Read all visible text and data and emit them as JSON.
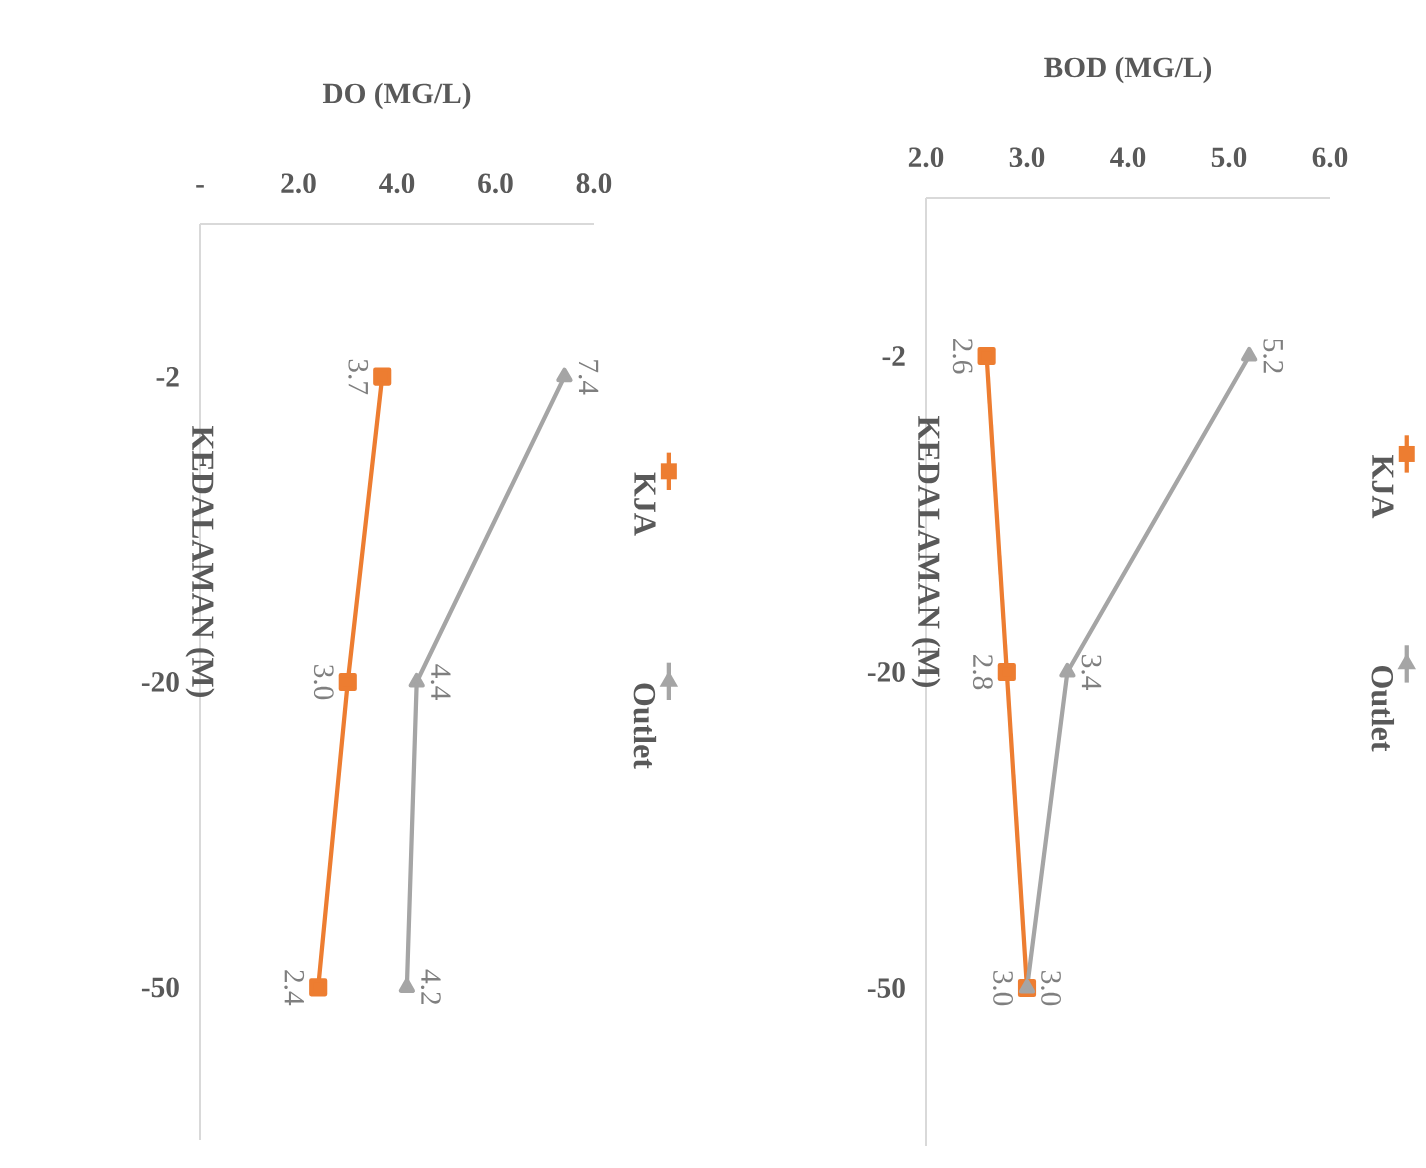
{
  "chart_data": [
    {
      "type": "line",
      "orientation": "horizontal",
      "xlabel": "DO (MG/L)",
      "ylabel": "KEDALAMAN (M)",
      "categories": [
        "-2",
        "-20",
        "-50"
      ],
      "xlim": [
        0,
        8
      ],
      "xticks": [
        {
          "value": 0,
          "label": "-"
        },
        {
          "value": 2,
          "label": "2.0"
        },
        {
          "value": 4,
          "label": "4.0"
        },
        {
          "value": 6,
          "label": "6.0"
        },
        {
          "value": 8,
          "label": "8.0"
        }
      ],
      "legend": "right",
      "series": [
        {
          "name": "KJA",
          "color": "#ed7d31",
          "marker": "square",
          "values": [
            3.7,
            3.0,
            2.4
          ],
          "value_labels": [
            "3.7",
            "3.0",
            "2.4"
          ]
        },
        {
          "name": "Outlet",
          "color": "#a5a5a5",
          "marker": "triangle",
          "values": [
            7.4,
            4.4,
            4.2
          ],
          "value_labels": [
            "7.4",
            "4.4",
            "4.2"
          ]
        }
      ]
    },
    {
      "type": "line",
      "orientation": "horizontal",
      "xlabel": "BOD (MG/L)",
      "ylabel": "KEDALAMAN (M)",
      "categories": [
        "-2",
        "-20",
        "-50"
      ],
      "xlim": [
        2,
        6
      ],
      "xticks": [
        {
          "value": 2,
          "label": "2.0"
        },
        {
          "value": 3,
          "label": "3.0"
        },
        {
          "value": 4,
          "label": "4.0"
        },
        {
          "value": 5,
          "label": "5.0"
        },
        {
          "value": 6,
          "label": "6.0"
        }
      ],
      "legend": "right",
      "series": [
        {
          "name": "KJA",
          "color": "#ed7d31",
          "marker": "square",
          "values": [
            2.6,
            2.8,
            3.0
          ],
          "value_labels": [
            "2.6",
            "2.8",
            "3.0"
          ]
        },
        {
          "name": "Outlet",
          "color": "#a5a5a5",
          "marker": "triangle",
          "values": [
            5.2,
            3.4,
            3.0
          ],
          "value_labels": [
            "5.2",
            "3.4",
            "3.0"
          ]
        }
      ]
    }
  ]
}
